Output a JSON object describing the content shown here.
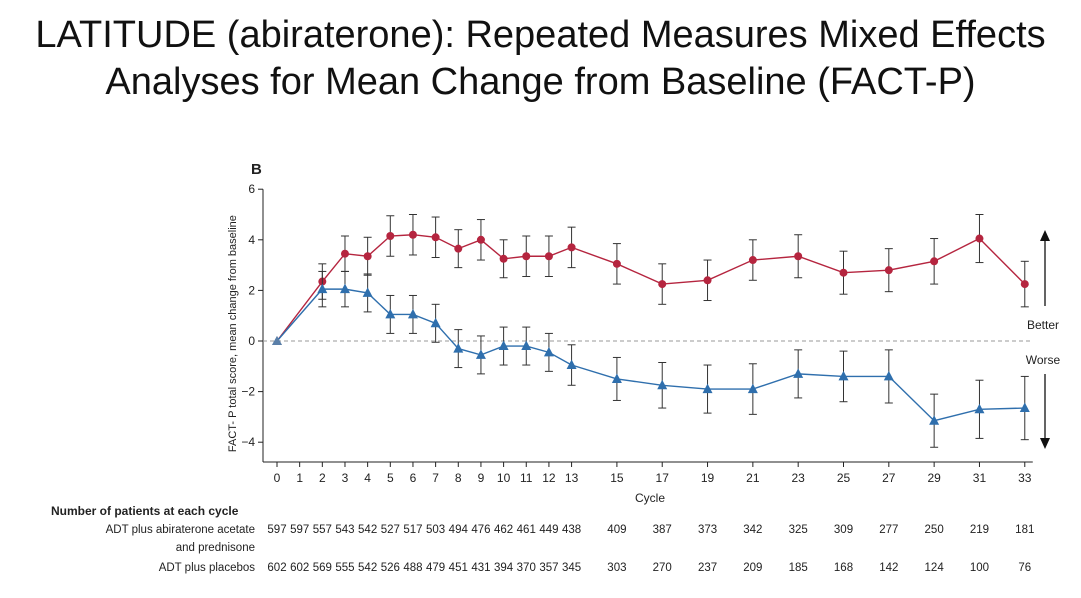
{
  "slide": {
    "title_line1": "LATITUDE (abiraterone): Repeated Measures Mixed Effects",
    "title_line2": "Analyses for Mean Change from Baseline (FACT-P)"
  },
  "chart_data": {
    "type": "line",
    "panel_label": "B",
    "xlabel": "Cycle",
    "ylabel": "FACT- P total score, mean change from baseline",
    "ylim": [
      -4.8,
      6
    ],
    "yticks": [
      -4,
      -2,
      0,
      2,
      4,
      6
    ],
    "xticks": [
      0,
      1,
      2,
      3,
      4,
      5,
      6,
      7,
      8,
      9,
      10,
      11,
      12,
      13,
      15,
      17,
      19,
      21,
      23,
      25,
      27,
      29,
      31,
      33
    ],
    "reference_line": 0,
    "annotations": {
      "better": "Better",
      "worse": "Worse"
    },
    "series": [
      {
        "marker": "circle",
        "color": "#b5253f",
        "x": [
          0,
          2,
          3,
          4,
          5,
          6,
          7,
          8,
          9,
          10,
          11,
          12,
          13,
          15,
          17,
          19,
          21,
          23,
          25,
          27,
          29,
          31,
          33
        ],
        "y": [
          0,
          2.35,
          3.45,
          3.35,
          4.15,
          4.2,
          4.1,
          3.65,
          4.0,
          3.25,
          3.35,
          3.35,
          3.7,
          3.05,
          2.25,
          2.4,
          3.2,
          3.35,
          2.7,
          2.8,
          3.15,
          4.05,
          2.25
        ],
        "err": [
          0,
          0.7,
          0.7,
          0.75,
          0.8,
          0.8,
          0.8,
          0.75,
          0.8,
          0.75,
          0.8,
          0.8,
          0.8,
          0.8,
          0.8,
          0.8,
          0.8,
          0.85,
          0.85,
          0.85,
          0.9,
          0.95,
          0.9
        ]
      },
      {
        "marker": "triangle",
        "color": "#2f6fad",
        "x": [
          0,
          2,
          3,
          4,
          5,
          6,
          7,
          8,
          9,
          10,
          11,
          12,
          13,
          15,
          17,
          19,
          21,
          23,
          25,
          27,
          29,
          31,
          33
        ],
        "y": [
          0,
          2.05,
          2.05,
          1.9,
          1.05,
          1.05,
          0.7,
          -0.3,
          -0.55,
          -0.2,
          -0.2,
          -0.45,
          -0.95,
          -1.5,
          -1.75,
          -1.9,
          -1.9,
          -1.3,
          -1.4,
          -1.4,
          -3.15,
          -2.7,
          -2.65
        ],
        "err": [
          0,
          0.7,
          0.7,
          0.75,
          0.75,
          0.75,
          0.75,
          0.75,
          0.75,
          0.75,
          0.75,
          0.75,
          0.8,
          0.85,
          0.9,
          0.95,
          1.0,
          0.95,
          1.0,
          1.05,
          1.05,
          1.15,
          1.25
        ]
      }
    ]
  },
  "patients_table": {
    "header": "Number of patients at each cycle",
    "cycles": [
      0,
      1,
      2,
      3,
      4,
      5,
      6,
      7,
      8,
      9,
      10,
      11,
      12,
      13,
      15,
      17,
      19,
      21,
      23,
      25,
      27,
      29,
      31,
      33
    ],
    "rows": [
      {
        "label_line1": "ADT plus abiraterone acetate",
        "label_line2": "and prednisone",
        "values": [
          "597",
          "597",
          "557",
          "543",
          "542",
          "527",
          "517",
          "503",
          "494",
          "476",
          "462",
          "461",
          "449",
          "438",
          "409",
          "387",
          "373",
          "342",
          "325",
          "309",
          "277",
          "250",
          "219",
          "181"
        ]
      },
      {
        "label_line1": "ADT plus placebos",
        "label_line2": "",
        "values": [
          "602",
          "602",
          "569",
          "555",
          "542",
          "526",
          "488",
          "479",
          "451",
          "431",
          "394",
          "370",
          "357",
          "345",
          "303",
          "270",
          "237",
          "209",
          "185",
          "168",
          "142",
          "124",
          "100",
          "76"
        ]
      }
    ]
  }
}
